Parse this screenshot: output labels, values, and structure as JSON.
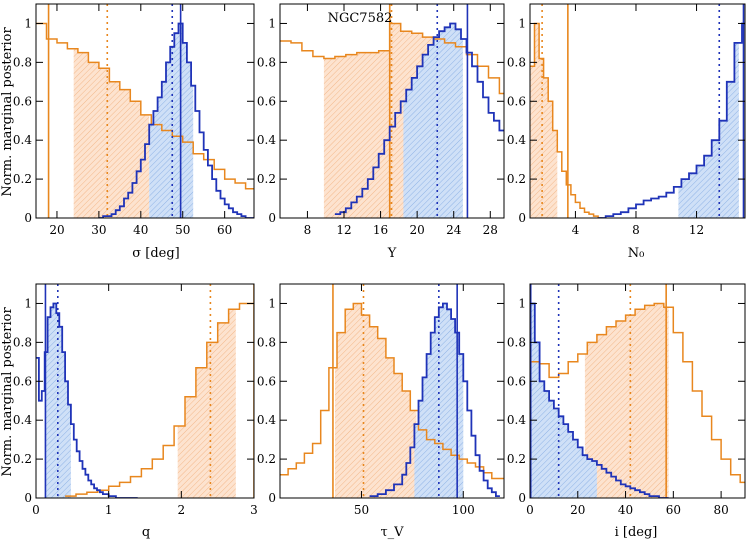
{
  "figure": {
    "ylabel": "Norm. marginal posterior",
    "colors": {
      "orange": "#e8871e",
      "orange_fill": "#fbd9bf",
      "blue": "#1f33b8",
      "blue_fill": "#bcd3f2"
    }
  },
  "chart_data": [
    {
      "type": "area",
      "id": "sigma",
      "xlabel": "σ [deg]",
      "xlim": [
        15,
        67
      ],
      "ylim": [
        0,
        1.1
      ],
      "xticks": [
        20,
        30,
        40,
        50,
        60
      ],
      "yticks": [
        0,
        0.2,
        0.4,
        0.6,
        0.8,
        1
      ],
      "series": [
        {
          "color": "orange",
          "bin_edges": [
            15,
            17.5,
            20,
            22.5,
            25,
            27.5,
            30,
            32.5,
            35,
            37.5,
            40,
            42.5,
            45,
            47.5,
            50,
            52.5,
            55,
            57.5,
            60,
            62.5,
            65,
            67
          ],
          "values": [
            1.0,
            0.92,
            0.9,
            0.87,
            0.85,
            0.8,
            0.77,
            0.7,
            0.66,
            0.6,
            0.53,
            0.48,
            0.45,
            0.42,
            0.39,
            0.33,
            0.3,
            0.25,
            0.2,
            0.18,
            0.15
          ],
          "fill_range": [
            24,
            42
          ],
          "median": 32,
          "best": 18
        },
        {
          "color": "blue",
          "bin_edges": [
            30,
            31,
            32,
            33,
            34,
            35,
            36,
            37,
            38,
            39,
            40,
            41,
            42,
            43,
            44,
            45,
            46,
            47,
            48,
            49,
            50,
            51,
            52,
            53,
            54,
            55,
            56,
            57,
            58,
            59,
            60,
            61,
            62,
            63,
            64,
            65,
            66,
            67
          ],
          "values": [
            0.0,
            0.01,
            0.01,
            0.02,
            0.04,
            0.06,
            0.1,
            0.13,
            0.18,
            0.24,
            0.3,
            0.38,
            0.48,
            0.55,
            0.62,
            0.7,
            0.8,
            0.88,
            0.95,
            1.0,
            0.9,
            0.8,
            0.68,
            0.55,
            0.44,
            0.35,
            0.27,
            0.2,
            0.14,
            0.1,
            0.07,
            0.05,
            0.03,
            0.02,
            0.01,
            0.0,
            0.0
          ],
          "fill_range": [
            42,
            52.5
          ],
          "median": 47.5,
          "best": 49.5
        }
      ]
    },
    {
      "type": "area",
      "id": "Y",
      "xlabel": "Y",
      "annotation": "NGC7582",
      "xlim": [
        5,
        29.5
      ],
      "ylim": [
        0,
        1.1
      ],
      "xticks": [
        8,
        12,
        16,
        20,
        24,
        28
      ],
      "yticks": [
        0,
        0.2,
        0.4,
        0.6,
        0.8,
        1
      ],
      "series": [
        {
          "color": "orange",
          "bin_edges": [
            5,
            6.2,
            7.4,
            8.6,
            9.8,
            11,
            12.2,
            13.4,
            14.6,
            15.8,
            17,
            18.2,
            19.4,
            20.6,
            21.8,
            23,
            24.2,
            25.4,
            26.6,
            27.8,
            29,
            29.5
          ],
          "values": [
            0.91,
            0.9,
            0.86,
            0.83,
            0.82,
            0.83,
            0.84,
            0.85,
            0.85,
            0.86,
            1.0,
            0.96,
            0.95,
            0.93,
            0.92,
            0.9,
            0.88,
            0.84,
            0.78,
            0.72,
            0.64
          ],
          "fill_range": [
            9.8,
            24.5
          ],
          "median": 17.2,
          "best": 17
        },
        {
          "color": "blue",
          "bin_edges": [
            11,
            11.6,
            12.2,
            12.8,
            13.4,
            14,
            14.6,
            15.2,
            15.8,
            16.4,
            17,
            17.6,
            18.2,
            18.8,
            19.4,
            20,
            20.6,
            21.2,
            21.8,
            22.4,
            23,
            23.6,
            24.2,
            24.8,
            25.4,
            26,
            26.6,
            27.2,
            27.8,
            28.4,
            29,
            29.5
          ],
          "values": [
            0.02,
            0.03,
            0.05,
            0.08,
            0.11,
            0.15,
            0.2,
            0.26,
            0.33,
            0.4,
            0.47,
            0.54,
            0.6,
            0.66,
            0.72,
            0.78,
            0.84,
            0.89,
            0.93,
            0.96,
            0.98,
            1.0,
            0.97,
            0.92,
            0.85,
            0.78,
            0.7,
            0.62,
            0.54,
            0.5,
            0.45
          ],
          "fill_range": [
            18.5,
            25
          ],
          "median": 22.2,
          "best": 25.5
        }
      ]
    },
    {
      "type": "area",
      "id": "N0",
      "xlabel": "N₀",
      "xlim": [
        1,
        15.2
      ],
      "ylim": [
        0,
        1.1
      ],
      "xticks": [
        4,
        8,
        12
      ],
      "yticks": [
        0,
        0.2,
        0.4,
        0.6,
        0.8,
        1
      ],
      "series": [
        {
          "color": "orange",
          "bin_edges": [
            1,
            1.3,
            1.6,
            1.9,
            2.2,
            2.5,
            2.8,
            3.1,
            3.4,
            3.7,
            4,
            4.3,
            4.6,
            4.9,
            5.2,
            5.5,
            5.8
          ],
          "values": [
            0.78,
            1.0,
            0.82,
            0.72,
            0.6,
            0.45,
            0.34,
            0.24,
            0.17,
            0.12,
            0.08,
            0.05,
            0.03,
            0.02,
            0.01,
            0.0
          ],
          "fill_range": [
            1.0,
            2.8
          ],
          "median": 1.8,
          "best": 3.5
        },
        {
          "color": "blue",
          "bin_edges": [
            5.5,
            6,
            6.5,
            7,
            7.5,
            8,
            8.5,
            9,
            9.5,
            10,
            10.5,
            11,
            11.5,
            12,
            12.5,
            13,
            13.5,
            14,
            14.5,
            15,
            15.2
          ],
          "values": [
            0.0,
            0.01,
            0.02,
            0.03,
            0.05,
            0.07,
            0.09,
            0.1,
            0.11,
            0.13,
            0.16,
            0.2,
            0.23,
            0.27,
            0.32,
            0.4,
            0.5,
            0.7,
            0.9,
            1.0
          ],
          "fill_range": [
            10.8,
            14.8
          ],
          "median": 13.5,
          "best": 15.1
        }
      ]
    },
    {
      "type": "area",
      "id": "q",
      "xlabel": "q",
      "xlim": [
        0,
        3
      ],
      "ylim": [
        0,
        1.1
      ],
      "xticks": [
        0,
        1,
        2,
        3
      ],
      "yticks": [
        0,
        0.2,
        0.4,
        0.6,
        0.8,
        1
      ],
      "series": [
        {
          "color": "orange",
          "bin_edges": [
            0.4,
            0.55,
            0.7,
            0.85,
            1.0,
            1.15,
            1.3,
            1.45,
            1.6,
            1.75,
            1.9,
            2.05,
            2.2,
            2.35,
            2.5,
            2.65,
            2.8,
            3.0
          ],
          "values": [
            0.01,
            0.02,
            0.03,
            0.04,
            0.06,
            0.08,
            0.11,
            0.15,
            0.2,
            0.27,
            0.37,
            0.52,
            0.67,
            0.8,
            0.9,
            0.97,
            1.0
          ],
          "fill_range": [
            1.95,
            2.75
          ],
          "median": 2.4,
          "best": 3.0
        },
        {
          "color": "blue",
          "bin_edges": [
            0,
            0.04,
            0.08,
            0.12,
            0.16,
            0.2,
            0.24,
            0.28,
            0.32,
            0.36,
            0.4,
            0.44,
            0.48,
            0.52,
            0.56,
            0.6,
            0.64,
            0.68,
            0.72,
            0.76,
            0.8,
            0.84,
            0.88,
            0.92,
            0.96,
            1.0,
            1.05,
            1.1,
            1.2,
            1.3,
            1.4
          ],
          "values": [
            0.72,
            0.5,
            0.55,
            0.75,
            0.93,
            0.98,
            1.0,
            0.95,
            0.88,
            0.75,
            0.6,
            0.48,
            0.38,
            0.3,
            0.24,
            0.19,
            0.15,
            0.12,
            0.09,
            0.07,
            0.05,
            0.04,
            0.03,
            0.02,
            0.02,
            0.01,
            0.01,
            0.0,
            0.0,
            0.0
          ],
          "fill_range": [
            0.12,
            0.48
          ],
          "median": 0.3,
          "best": 0.13
        }
      ]
    },
    {
      "type": "area",
      "id": "tauV",
      "xlabel": "τ_V",
      "xlim": [
        10,
        120
      ],
      "ylim": [
        0,
        1.1
      ],
      "xticks": [
        50,
        100
      ],
      "yticks": [
        0,
        0.2,
        0.4,
        0.6,
        0.8,
        1
      ],
      "series": [
        {
          "color": "orange",
          "bin_edges": [
            10,
            14,
            18,
            22,
            26,
            30,
            34,
            38,
            42,
            46,
            50,
            54,
            58,
            62,
            66,
            70,
            74,
            78,
            82,
            86,
            90,
            94,
            98,
            102,
            106,
            110,
            114,
            118,
            120
          ],
          "values": [
            0.12,
            0.15,
            0.18,
            0.23,
            0.28,
            0.45,
            0.67,
            0.85,
            0.97,
            1.0,
            0.94,
            0.88,
            0.82,
            0.72,
            0.64,
            0.55,
            0.45,
            0.35,
            0.3,
            0.28,
            0.25,
            0.22,
            0.2,
            0.18,
            0.16,
            0.13,
            0.1,
            0.1
          ],
          "fill_range": [
            37,
            77
          ],
          "median": 51,
          "best": 36
        },
        {
          "color": "blue",
          "bin_edges": [
            54,
            58,
            62,
            66,
            70,
            72,
            74,
            76,
            78,
            80,
            82,
            84,
            86,
            88,
            90,
            92,
            94,
            96,
            98,
            100,
            102,
            104,
            106,
            108,
            110,
            112,
            114,
            116,
            118
          ],
          "values": [
            0.01,
            0.02,
            0.04,
            0.07,
            0.12,
            0.18,
            0.26,
            0.38,
            0.5,
            0.62,
            0.74,
            0.85,
            0.93,
            0.98,
            1.0,
            0.97,
            0.92,
            0.85,
            0.74,
            0.6,
            0.45,
            0.32,
            0.22,
            0.14,
            0.09,
            0.05,
            0.03,
            0.01
          ],
          "fill_range": [
            76,
            100
          ],
          "median": 88,
          "best": 97
        }
      ]
    },
    {
      "type": "area",
      "id": "incl",
      "xlabel": "i [deg]",
      "xlim": [
        0,
        90
      ],
      "ylim": [
        0,
        1.1
      ],
      "xticks": [
        0,
        20,
        40,
        60,
        80
      ],
      "yticks": [
        0,
        0.2,
        0.4,
        0.6,
        0.8,
        1
      ],
      "series": [
        {
          "color": "orange",
          "bin_edges": [
            0,
            4,
            8,
            12,
            16,
            20,
            24,
            28,
            32,
            36,
            40,
            44,
            48,
            52,
            56,
            60,
            64,
            68,
            72,
            76,
            80,
            84,
            88,
            90
          ],
          "values": [
            0.7,
            0.69,
            0.62,
            0.64,
            0.7,
            0.74,
            0.8,
            0.84,
            0.88,
            0.91,
            0.94,
            0.97,
            0.99,
            1.0,
            0.98,
            0.85,
            0.7,
            0.55,
            0.42,
            0.3,
            0.2,
            0.12,
            0.08
          ],
          "fill_range": [
            23,
            58
          ],
          "median": 42,
          "best": 57
        },
        {
          "color": "blue",
          "bin_edges": [
            0,
            2,
            4,
            6,
            8,
            10,
            12,
            14,
            16,
            18,
            20,
            22,
            24,
            26,
            28,
            30,
            32,
            34,
            36,
            38,
            40,
            42,
            44,
            46,
            48,
            50,
            52,
            54,
            56,
            58
          ],
          "values": [
            1.0,
            0.8,
            0.6,
            0.55,
            0.5,
            0.46,
            0.42,
            0.38,
            0.34,
            0.3,
            0.26,
            0.22,
            0.2,
            0.19,
            0.17,
            0.15,
            0.13,
            0.11,
            0.09,
            0.07,
            0.06,
            0.05,
            0.04,
            0.03,
            0.02,
            0.01,
            0.01,
            0.0,
            0.0
          ],
          "fill_range": [
            0,
            28
          ],
          "median": 12,
          "best": 0.3
        }
      ]
    }
  ]
}
